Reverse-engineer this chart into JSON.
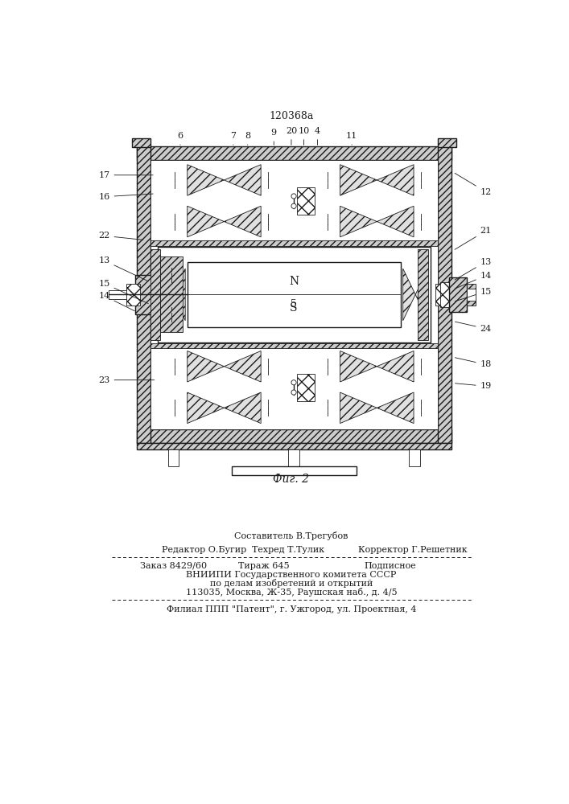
{
  "patent_number": "120368а",
  "figure_label": "Фиг. 2",
  "bg_color": "#ffffff",
  "line_color": "#1a1a1a",
  "footer": {
    "line1": "Составитель В.Трегубов",
    "line2_left": "Редактор О.Бугир",
    "line2_mid": "Техред Т.Тулик",
    "line2_right": "Корректор Г.Решетник",
    "line3_left": "Заказ 8429/60",
    "line3_mid": "Тираж 645",
    "line3_right": "Подписное",
    "line4": "ВНИИПИ Государственного комитета СССР",
    "line5": "по делам изобретений и открытий",
    "line6": "113035, Москва, Ж-35, Раушская наб., д. 4/5",
    "line7": "Филиал ППП \"Патент\", г. Ужгород, ул. Проектная, 4"
  }
}
